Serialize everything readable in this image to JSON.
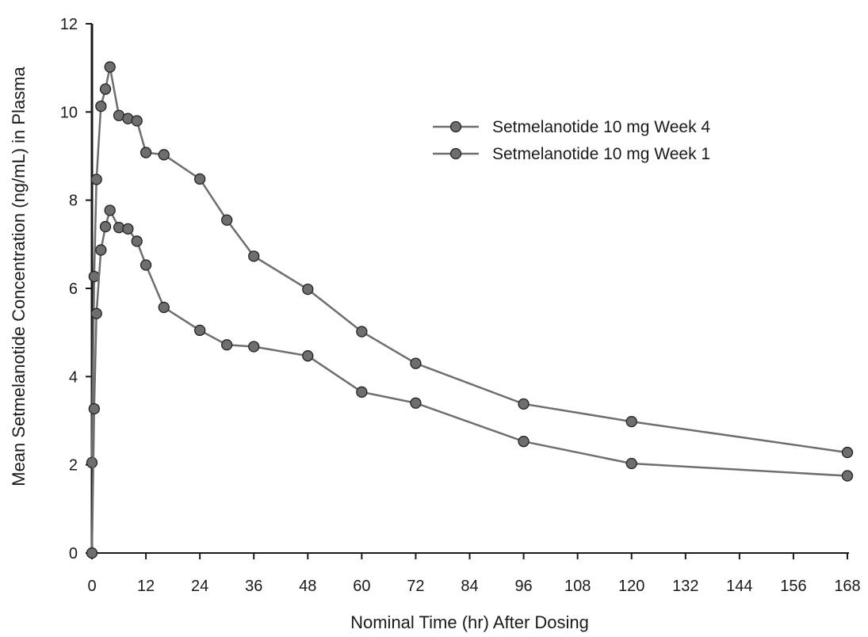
{
  "chart_data": {
    "type": "line",
    "title": "",
    "xlabel": "Nominal Time (hr) After Dosing",
    "ylabel": "Mean Setmelanotide Concentration (ng/mL) in Plasma",
    "xlim": [
      0,
      168
    ],
    "ylim": [
      0,
      12
    ],
    "x_ticks": [
      "0",
      "12",
      "24",
      "36",
      "48",
      "60",
      "72",
      "84",
      "96",
      "108",
      "120",
      "132",
      "144",
      "156",
      "168"
    ],
    "y_ticks": [
      "0",
      "2",
      "4",
      "6",
      "8",
      "10",
      "12"
    ],
    "grid": false,
    "legend_position": "upper-right",
    "colors": {
      "line": "#6e6e6e",
      "marker_fill": "#6e6e6e",
      "marker_edge": "#222222",
      "axis": "#1a1a1a"
    },
    "series": [
      {
        "name": "Setmelanotide 10 mg Week 4",
        "x": [
          0,
          0.5,
          1,
          2,
          3,
          4,
          6,
          8,
          10,
          12,
          16,
          24,
          30,
          36,
          48,
          60,
          72,
          96,
          120,
          168
        ],
        "y": [
          2.05,
          6.27,
          8.47,
          10.13,
          10.52,
          11.02,
          9.92,
          9.85,
          9.8,
          9.08,
          9.03,
          8.48,
          7.55,
          6.73,
          5.98,
          5.02,
          4.3,
          3.38,
          2.98,
          2.28
        ]
      },
      {
        "name": "Setmelanotide 10 mg Week 1",
        "x": [
          0,
          0.5,
          1,
          2,
          3,
          4,
          6,
          8,
          10,
          12,
          16,
          24,
          30,
          36,
          48,
          60,
          72,
          96,
          120,
          168
        ],
        "y": [
          0,
          3.27,
          5.43,
          6.87,
          7.4,
          7.77,
          7.38,
          7.35,
          7.07,
          6.53,
          5.57,
          5.05,
          4.72,
          4.68,
          4.47,
          3.65,
          3.4,
          2.53,
          2.03,
          1.75
        ]
      }
    ]
  }
}
